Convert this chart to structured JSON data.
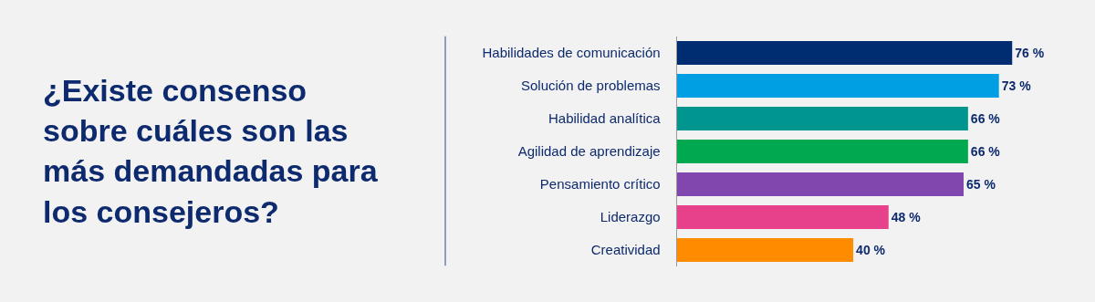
{
  "chart_data": {
    "type": "bar",
    "orientation": "horizontal",
    "title": "¿Existe consenso sobre cuáles son las más demandadas para los consejeros?",
    "categories": [
      "Habilidades de comunicación",
      "Solución de problemas",
      "Habilidad analítica",
      "Agilidad de aprendizaje",
      "Pensamiento crítico",
      "Liderazgo",
      "Creatividad"
    ],
    "values": [
      76,
      73,
      66,
      66,
      65,
      48,
      40
    ],
    "colors": [
      "#002d72",
      "#009fe3",
      "#00968f",
      "#00a94f",
      "#8246af",
      "#e8418c",
      "#ff8c00"
    ],
    "value_labels": [
      "76 %",
      "73 %",
      "66 %",
      "66 %",
      "65 %",
      "48 %",
      "40 %"
    ],
    "legend": false
  }
}
